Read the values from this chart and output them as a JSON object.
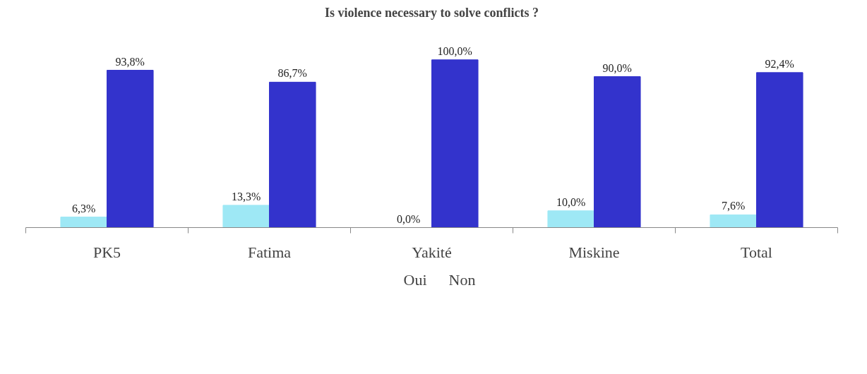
{
  "chart_data": {
    "type": "bar",
    "title": "Is violence necessary to solve conflicts ?",
    "categories": [
      "PK5",
      "Fatima",
      "Yakité",
      "Miskine",
      "Total"
    ],
    "series": [
      {
        "name": "Oui",
        "color": "#9ee8f5",
        "values": [
          6.3,
          13.3,
          0.0,
          10.0,
          7.6
        ],
        "value_labels": [
          "6,3%",
          "13,3%",
          "0,0%",
          "10,0%",
          "7,6%"
        ]
      },
      {
        "name": "Non",
        "color": "#3333cc",
        "values": [
          93.8,
          86.7,
          100.0,
          90.0,
          92.4
        ],
        "value_labels": [
          "93,8%",
          "86,7%",
          "100,0%",
          "90,0%",
          "92,4%"
        ]
      }
    ],
    "legend": "bottom"
  }
}
